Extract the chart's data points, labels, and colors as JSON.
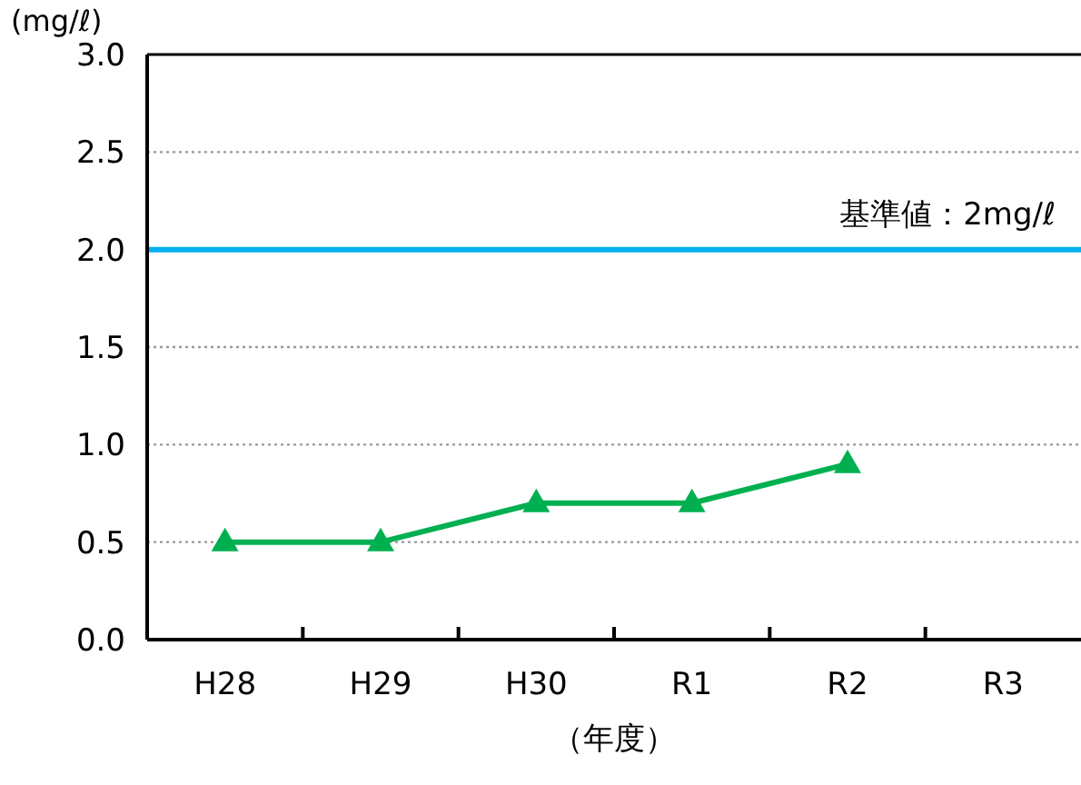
{
  "chart_data": {
    "type": "line",
    "ylabel": "(mg/ℓ)",
    "xlabel": "（年度）",
    "categories": [
      "H28",
      "H29",
      "H30",
      "R1",
      "R2",
      "R3"
    ],
    "series": [
      {
        "color": "#00b050",
        "values": [
          0.5,
          0.5,
          0.7,
          0.7,
          0.9,
          null
        ]
      }
    ],
    "ylim": [
      0,
      3
    ],
    "yticks": [
      {
        "value": 0,
        "label": "0.0"
      },
      {
        "value": 0.5,
        "label": "0.5"
      },
      {
        "value": 1,
        "label": "1.0"
      },
      {
        "value": 1.5,
        "label": "1.5"
      },
      {
        "value": 2,
        "label": "2.0"
      },
      {
        "value": 2.5,
        "label": "2.5"
      },
      {
        "value": 3,
        "label": "3.0"
      }
    ],
    "grid": "y",
    "marker": "triangle",
    "line_style": "solid",
    "ref_lines": [
      {
        "axis": "y",
        "value": 2,
        "label": "基準値：2mg/ℓ",
        "color": "#00b0f0"
      }
    ]
  }
}
